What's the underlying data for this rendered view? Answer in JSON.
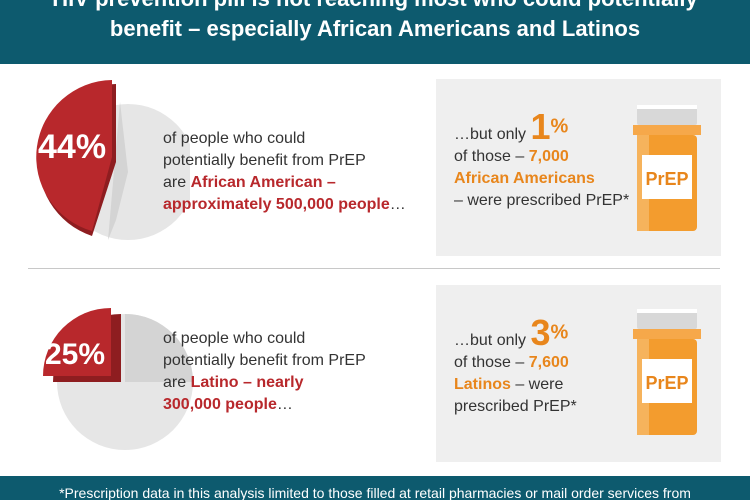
{
  "header": {
    "line1": "HIV prevention pill is not reaching most who could potentially",
    "line2": "benefit – especially African Americans and Latinos"
  },
  "row1": {
    "percent": "44%",
    "share": 0.44,
    "desc_line1": "of people who could",
    "desc_line2": "potentially benefit from PrEP",
    "desc_line3_prefix": "are ",
    "desc_line3_highlight": "African American –",
    "desc_line4_highlight": "approximately 500,000 people",
    "desc_line4_suffix": "…",
    "panel": {
      "prefix": "…but only ",
      "number": "1",
      "sign": "%",
      "line2_prefix": "of those – ",
      "line2_highlight": "7,000",
      "line3_highlight": "African Americans",
      "line4": "– were prescribed PrEP*"
    },
    "bottle_label": "PrEP"
  },
  "row2": {
    "percent": "25%",
    "share": 0.25,
    "desc_line1": "of people who could",
    "desc_line2": "potentially benefit from PrEP",
    "desc_line3_prefix": "are ",
    "desc_line3_highlight": "Latino – nearly",
    "desc_line4_highlight": "300,000 people",
    "desc_line4_suffix": "…",
    "panel": {
      "prefix": "…but only ",
      "number": "3",
      "sign": "%",
      "line2_prefix": "of those – ",
      "line2_highlight": "7,600",
      "line3_highlight": "Latinos",
      "line3_suffix": " – were",
      "line4": "prescribed PrEP*"
    },
    "bottle_label": "PrEP"
  },
  "footer": {
    "text": "*Prescription data in this analysis limited to those filled at retail pharmacies or mail order services from"
  },
  "colors": {
    "header_bg": "#0d5a6e",
    "pie_red": "#b8282c",
    "pie_grey": "#e6e6e6",
    "accent_orange": "#e8861c"
  }
}
